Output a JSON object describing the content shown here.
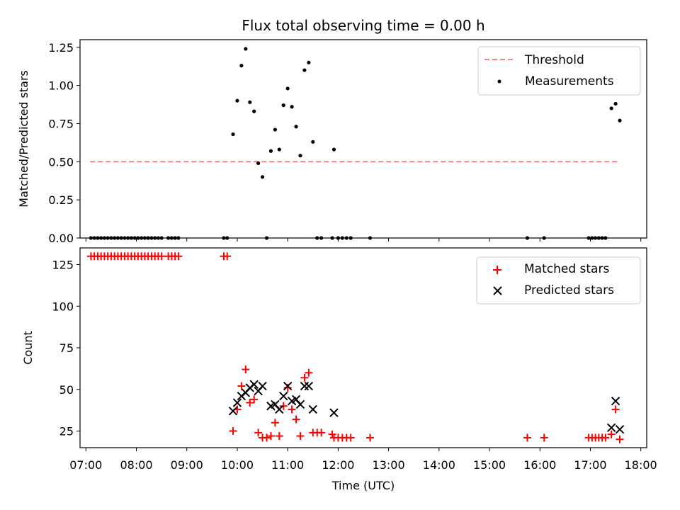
{
  "chart_data": {
    "title": "Flux total observing time = 0.00 h",
    "xlabel": "Time (UTC)",
    "x_tick_labels": [
      "07:00",
      "08:00",
      "09:00",
      "10:00",
      "11:00",
      "12:00",
      "13:00",
      "14:00",
      "15:00",
      "16:00",
      "17:00",
      "18:00"
    ],
    "xlim": [
      "06:53",
      "18:07"
    ],
    "panels": [
      {
        "type": "scatter",
        "ylabel": "Matched/Predicted stars",
        "ylim": [
          0,
          1.3
        ],
        "yticks": [
          0.0,
          0.25,
          0.5,
          0.75,
          1.0,
          1.25
        ],
        "ytick_labels": [
          "0.00",
          "0.25",
          "0.50",
          "0.75",
          "1.00",
          "1.25"
        ],
        "legend_position": "upper right",
        "threshold": {
          "name": "Threshold",
          "value": 0.5,
          "x_start": "07:05",
          "x_end": "17:32",
          "color": "#ff7f7f",
          "style": "dashed"
        },
        "series": [
          {
            "name": "Measurements",
            "marker": "dot",
            "color": "#000000",
            "points": [
              [
                "07:06",
                0
              ],
              [
                "07:10",
                0
              ],
              [
                "07:14",
                0
              ],
              [
                "07:18",
                0
              ],
              [
                "07:22",
                0
              ],
              [
                "07:26",
                0
              ],
              [
                "07:30",
                0
              ],
              [
                "07:34",
                0
              ],
              [
                "07:38",
                0
              ],
              [
                "07:42",
                0
              ],
              [
                "07:46",
                0
              ],
              [
                "07:50",
                0
              ],
              [
                "07:54",
                0
              ],
              [
                "07:58",
                0
              ],
              [
                "08:02",
                0
              ],
              [
                "08:06",
                0
              ],
              [
                "08:10",
                0
              ],
              [
                "08:14",
                0
              ],
              [
                "08:18",
                0
              ],
              [
                "08:22",
                0
              ],
              [
                "08:26",
                0
              ],
              [
                "08:30",
                0
              ],
              [
                "08:38",
                0
              ],
              [
                "08:42",
                0
              ],
              [
                "08:46",
                0
              ],
              [
                "08:50",
                0
              ],
              [
                "09:44",
                0
              ],
              [
                "09:48",
                0
              ],
              [
                "09:55",
                0.68
              ],
              [
                "10:00",
                0.9
              ],
              [
                "10:05",
                1.13
              ],
              [
                "10:10",
                1.24
              ],
              [
                "10:15",
                0.89
              ],
              [
                "10:20",
                0.83
              ],
              [
                "10:25",
                0.49
              ],
              [
                "10:30",
                0.4
              ],
              [
                "10:35",
                0
              ],
              [
                "10:40",
                0.57
              ],
              [
                "10:45",
                0.71
              ],
              [
                "10:50",
                0.58
              ],
              [
                "10:55",
                0.87
              ],
              [
                "11:00",
                0.98
              ],
              [
                "11:05",
                0.86
              ],
              [
                "11:10",
                0.73
              ],
              [
                "11:15",
                0.54
              ],
              [
                "11:20",
                1.1
              ],
              [
                "11:25",
                1.15
              ],
              [
                "11:30",
                0.63
              ],
              [
                "11:35",
                0
              ],
              [
                "11:40",
                0
              ],
              [
                "11:53",
                0
              ],
              [
                "11:55",
                0.58
              ],
              [
                "12:00",
                0
              ],
              [
                "12:05",
                0
              ],
              [
                "12:10",
                0
              ],
              [
                "12:15",
                0
              ],
              [
                "12:38",
                0
              ],
              [
                "15:45",
                0
              ],
              [
                "16:05",
                0
              ],
              [
                "16:58",
                0
              ],
              [
                "17:02",
                0
              ],
              [
                "17:06",
                0
              ],
              [
                "17:10",
                0
              ],
              [
                "17:14",
                0
              ],
              [
                "17:18",
                0
              ],
              [
                "17:25",
                0.85
              ],
              [
                "17:30",
                0.88
              ],
              [
                "17:35",
                0.77
              ]
            ]
          }
        ]
      },
      {
        "type": "scatter",
        "ylabel": "Count",
        "ylim": [
          15,
          135
        ],
        "yticks": [
          25,
          50,
          75,
          100,
          125
        ],
        "ytick_labels": [
          "25",
          "50",
          "75",
          "100",
          "125"
        ],
        "legend_position": "upper right",
        "series": [
          {
            "name": "Matched stars",
            "marker": "plus",
            "color": "#ff0000",
            "points": [
              [
                "07:06",
                130
              ],
              [
                "07:10",
                130
              ],
              [
                "07:14",
                130
              ],
              [
                "07:18",
                130
              ],
              [
                "07:22",
                130
              ],
              [
                "07:26",
                130
              ],
              [
                "07:30",
                130
              ],
              [
                "07:34",
                130
              ],
              [
                "07:38",
                130
              ],
              [
                "07:42",
                130
              ],
              [
                "07:46",
                130
              ],
              [
                "07:50",
                130
              ],
              [
                "07:54",
                130
              ],
              [
                "07:58",
                130
              ],
              [
                "08:02",
                130
              ],
              [
                "08:06",
                130
              ],
              [
                "08:10",
                130
              ],
              [
                "08:14",
                130
              ],
              [
                "08:18",
                130
              ],
              [
                "08:22",
                130
              ],
              [
                "08:26",
                130
              ],
              [
                "08:30",
                130
              ],
              [
                "08:38",
                130
              ],
              [
                "08:42",
                130
              ],
              [
                "08:46",
                130
              ],
              [
                "08:50",
                130
              ],
              [
                "09:44",
                130
              ],
              [
                "09:48",
                130
              ],
              [
                "09:55",
                25
              ],
              [
                "10:00",
                38
              ],
              [
                "10:05",
                52
              ],
              [
                "10:10",
                62
              ],
              [
                "10:15",
                42
              ],
              [
                "10:20",
                44
              ],
              [
                "10:25",
                24
              ],
              [
                "10:30",
                21
              ],
              [
                "10:35",
                21
              ],
              [
                "10:40",
                22
              ],
              [
                "10:45",
                30
              ],
              [
                "10:50",
                22
              ],
              [
                "10:55",
                40
              ],
              [
                "11:00",
                51
              ],
              [
                "11:05",
                38
              ],
              [
                "11:10",
                32
              ],
              [
                "11:15",
                22
              ],
              [
                "11:20",
                57
              ],
              [
                "11:25",
                60
              ],
              [
                "11:30",
                24
              ],
              [
                "11:35",
                24
              ],
              [
                "11:40",
                24
              ],
              [
                "11:53",
                23
              ],
              [
                "11:55",
                21
              ],
              [
                "12:00",
                21
              ],
              [
                "12:05",
                21
              ],
              [
                "12:10",
                21
              ],
              [
                "12:15",
                21
              ],
              [
                "12:38",
                21
              ],
              [
                "15:45",
                21
              ],
              [
                "16:05",
                21
              ],
              [
                "16:58",
                21
              ],
              [
                "17:02",
                21
              ],
              [
                "17:06",
                21
              ],
              [
                "17:10",
                21
              ],
              [
                "17:14",
                21
              ],
              [
                "17:18",
                21
              ],
              [
                "17:25",
                23
              ],
              [
                "17:30",
                38
              ],
              [
                "17:35",
                20
              ]
            ]
          },
          {
            "name": "Predicted stars",
            "marker": "x",
            "color": "#000000",
            "points": [
              [
                "09:55",
                37
              ],
              [
                "10:00",
                42
              ],
              [
                "10:05",
                46
              ],
              [
                "10:10",
                48
              ],
              [
                "10:15",
                51
              ],
              [
                "10:20",
                53
              ],
              [
                "10:25",
                49
              ],
              [
                "10:30",
                52
              ],
              [
                "10:40",
                40
              ],
              [
                "10:45",
                41
              ],
              [
                "10:50",
                38
              ],
              [
                "10:55",
                46
              ],
              [
                "11:00",
                52
              ],
              [
                "11:05",
                43
              ],
              [
                "11:10",
                44
              ],
              [
                "11:15",
                41
              ],
              [
                "11:20",
                52
              ],
              [
                "11:25",
                52
              ],
              [
                "11:30",
                38
              ],
              [
                "11:55",
                36
              ],
              [
                "17:25",
                27
              ],
              [
                "17:30",
                43
              ],
              [
                "17:35",
                26
              ]
            ]
          }
        ]
      }
    ]
  }
}
